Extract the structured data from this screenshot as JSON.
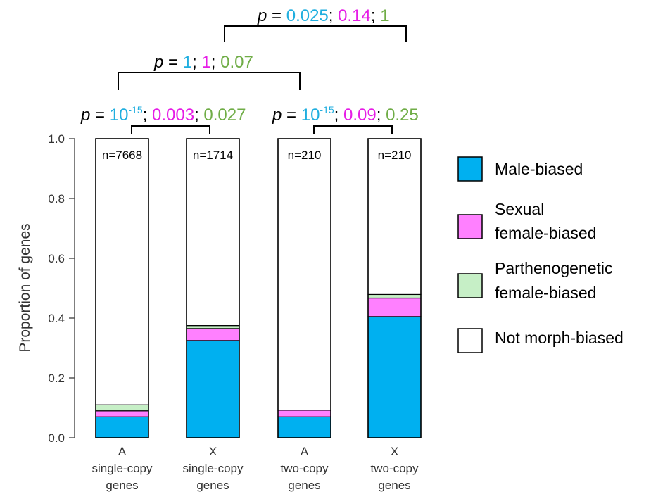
{
  "chart_data": {
    "type": "bar",
    "stacked": true,
    "ylabel": "Proportion of genes",
    "ylim": [
      0,
      1
    ],
    "yticks": [
      "0.0",
      "0.2",
      "0.4",
      "0.6",
      "0.8",
      "1.0"
    ],
    "categories": [
      {
        "line1": "A",
        "line2": "single-copy",
        "line3": "genes",
        "n_label": "n=7668"
      },
      {
        "line1": "X",
        "line2": "single-copy",
        "line3": "genes",
        "n_label": "n=1714"
      },
      {
        "line1": "A",
        "line2": "two-copy",
        "line3": "genes",
        "n_label": "n=210"
      },
      {
        "line1": "X",
        "line2": "two-copy",
        "line3": "genes",
        "n_label": "n=210"
      }
    ],
    "series": [
      {
        "name": "Male-biased",
        "color": "#00B0F0",
        "values": [
          0.07,
          0.325,
          0.07,
          0.405
        ]
      },
      {
        "name": "Sexual female-biased",
        "name_line1": "Sexual",
        "name_line2": "female-biased",
        "color": "#FF80FF",
        "values": [
          0.02,
          0.04,
          0.022,
          0.062
        ]
      },
      {
        "name": "Parthenogenetic female-biased",
        "name_line1": "Parthenogenetic",
        "name_line2": "female-biased",
        "color": "#C6EFC6",
        "values": [
          0.02,
          0.01,
          0.0,
          0.012
        ]
      },
      {
        "name": "Not morph-biased",
        "color": "#FFFFFF",
        "values": [
          0.89,
          0.625,
          0.908,
          0.521
        ]
      }
    ],
    "annotations": {
      "p_symbol": "p",
      "p_equals": " = ",
      "separator": "; ",
      "comparisons": [
        {
          "label": "A vs X single-copy",
          "male_base": "10",
          "male_exp": "-15",
          "sexual": "0.003",
          "parth": "0.027"
        },
        {
          "label": "A vs X two-copy",
          "male_base": "10",
          "male_exp": "-15",
          "sexual": "0.09",
          "parth": "0.25"
        },
        {
          "label": "A single vs two-copy",
          "male": "1",
          "sexual": "1",
          "parth": "0.07"
        },
        {
          "label": "X single vs two-copy",
          "male": "0.025",
          "sexual": "0.14",
          "parth": "1"
        }
      ],
      "colors": {
        "male": "#1FAEDF",
        "sexual": "#E61EE6",
        "parth": "#70AD47",
        "text": "#000000"
      }
    }
  }
}
